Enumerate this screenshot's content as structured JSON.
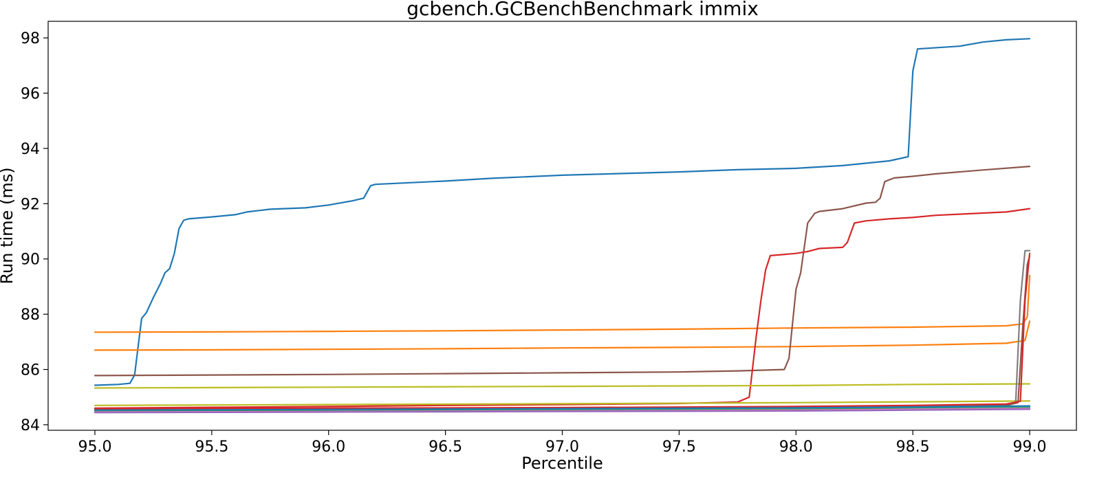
{
  "chart_data": {
    "type": "line",
    "title": "gcbench.GCBenchBenchmark immix",
    "xlabel": "Percentile",
    "ylabel": "Run time (ms)",
    "xlim": [
      94.8,
      99.2
    ],
    "ylim": [
      83.8,
      98.6
    ],
    "xticks": [
      95.0,
      95.5,
      96.0,
      96.5,
      97.0,
      97.5,
      98.0,
      98.5,
      99.0
    ],
    "xtick_labels": [
      "95.0",
      "95.5",
      "96.0",
      "96.5",
      "97.0",
      "97.5",
      "98.0",
      "98.5",
      "99.0"
    ],
    "yticks": [
      84,
      86,
      88,
      90,
      92,
      94,
      96,
      98
    ],
    "ytick_labels": [
      "84",
      "86",
      "88",
      "90",
      "92",
      "94",
      "96",
      "98"
    ],
    "grid": false,
    "series": [
      {
        "color": "#1f77b4",
        "points": [
          [
            95.0,
            85.43
          ],
          [
            95.1,
            85.46
          ],
          [
            95.15,
            85.5
          ],
          [
            95.17,
            85.8
          ],
          [
            95.2,
            87.85
          ],
          [
            95.22,
            88.05
          ],
          [
            95.25,
            88.6
          ],
          [
            95.28,
            89.1
          ],
          [
            95.3,
            89.5
          ],
          [
            95.32,
            89.65
          ],
          [
            95.34,
            90.2
          ],
          [
            95.36,
            91.1
          ],
          [
            95.38,
            91.4
          ],
          [
            95.4,
            91.45
          ],
          [
            95.5,
            91.52
          ],
          [
            95.6,
            91.6
          ],
          [
            95.65,
            91.7
          ],
          [
            95.75,
            91.8
          ],
          [
            95.9,
            91.85
          ],
          [
            96.0,
            91.95
          ],
          [
            96.1,
            92.1
          ],
          [
            96.15,
            92.2
          ],
          [
            96.18,
            92.65
          ],
          [
            96.2,
            92.7
          ],
          [
            96.5,
            92.82
          ],
          [
            96.7,
            92.92
          ],
          [
            97.0,
            93.03
          ],
          [
            97.5,
            93.15
          ],
          [
            97.75,
            93.23
          ],
          [
            98.0,
            93.28
          ],
          [
            98.2,
            93.38
          ],
          [
            98.4,
            93.55
          ],
          [
            98.48,
            93.7
          ],
          [
            98.5,
            96.8
          ],
          [
            98.52,
            97.6
          ],
          [
            98.7,
            97.7
          ],
          [
            98.8,
            97.85
          ],
          [
            98.9,
            97.93
          ],
          [
            99.0,
            97.97
          ]
        ]
      },
      {
        "color": "#ff7f0e",
        "points": [
          [
            95.0,
            87.35
          ],
          [
            95.5,
            87.36
          ],
          [
            96.0,
            87.38
          ],
          [
            96.5,
            87.4
          ],
          [
            97.0,
            87.43
          ],
          [
            97.5,
            87.46
          ],
          [
            98.0,
            87.5
          ],
          [
            98.5,
            87.53
          ],
          [
            98.9,
            87.58
          ],
          [
            98.97,
            87.65
          ],
          [
            98.99,
            87.9
          ],
          [
            99.0,
            89.4
          ]
        ]
      },
      {
        "color": "#ff7f0e",
        "points": [
          [
            95.0,
            86.7
          ],
          [
            95.5,
            86.71
          ],
          [
            96.0,
            86.73
          ],
          [
            96.5,
            86.75
          ],
          [
            97.0,
            86.78
          ],
          [
            97.5,
            86.8
          ],
          [
            98.0,
            86.83
          ],
          [
            98.5,
            86.88
          ],
          [
            98.9,
            86.95
          ],
          [
            98.98,
            87.05
          ],
          [
            99.0,
            87.75
          ]
        ]
      },
      {
        "color": "#8c564b",
        "points": [
          [
            95.0,
            85.78
          ],
          [
            95.5,
            85.8
          ],
          [
            96.0,
            85.82
          ],
          [
            96.5,
            85.85
          ],
          [
            97.0,
            85.88
          ],
          [
            97.5,
            85.91
          ],
          [
            97.75,
            85.95
          ],
          [
            97.95,
            86.0
          ],
          [
            97.97,
            86.4
          ],
          [
            98.0,
            88.9
          ],
          [
            98.02,
            89.5
          ],
          [
            98.05,
            91.3
          ],
          [
            98.08,
            91.65
          ],
          [
            98.1,
            91.72
          ],
          [
            98.2,
            91.82
          ],
          [
            98.3,
            92.02
          ],
          [
            98.34,
            92.05
          ],
          [
            98.36,
            92.2
          ],
          [
            98.38,
            92.8
          ],
          [
            98.42,
            92.93
          ],
          [
            98.5,
            92.99
          ],
          [
            98.6,
            93.08
          ],
          [
            98.8,
            93.22
          ],
          [
            99.0,
            93.35
          ]
        ]
      },
      {
        "color": "#d62728",
        "points": [
          [
            95.0,
            84.6
          ],
          [
            95.5,
            84.63
          ],
          [
            96.0,
            84.66
          ],
          [
            96.5,
            84.7
          ],
          [
            97.0,
            84.73
          ],
          [
            97.5,
            84.77
          ],
          [
            97.75,
            84.82
          ],
          [
            97.8,
            85.0
          ],
          [
            97.83,
            87.2
          ],
          [
            97.85,
            88.5
          ],
          [
            97.87,
            89.6
          ],
          [
            97.89,
            90.12
          ],
          [
            98.0,
            90.2
          ],
          [
            98.05,
            90.27
          ],
          [
            98.1,
            90.38
          ],
          [
            98.2,
            90.42
          ],
          [
            98.22,
            90.6
          ],
          [
            98.25,
            91.3
          ],
          [
            98.3,
            91.38
          ],
          [
            98.4,
            91.45
          ],
          [
            98.5,
            91.5
          ],
          [
            98.6,
            91.58
          ],
          [
            98.7,
            91.62
          ],
          [
            98.9,
            91.7
          ],
          [
            99.0,
            91.82
          ]
        ]
      },
      {
        "color": "#bcbd22",
        "points": [
          [
            95.0,
            85.33
          ],
          [
            96.0,
            85.36
          ],
          [
            97.0,
            85.39
          ],
          [
            98.0,
            85.42
          ],
          [
            98.5,
            85.46
          ],
          [
            99.0,
            85.48
          ]
        ]
      },
      {
        "color": "#bcbd22",
        "points": [
          [
            95.0,
            84.7
          ],
          [
            96.0,
            84.73
          ],
          [
            97.0,
            84.76
          ],
          [
            98.0,
            84.8
          ],
          [
            98.5,
            84.83
          ],
          [
            99.0,
            84.86
          ]
        ]
      },
      {
        "color": "#7f7f7f",
        "points": [
          [
            95.0,
            84.55
          ],
          [
            96.0,
            84.57
          ],
          [
            97.0,
            84.6
          ],
          [
            98.0,
            84.63
          ],
          [
            98.5,
            84.66
          ],
          [
            98.9,
            84.75
          ],
          [
            98.94,
            84.8
          ],
          [
            98.96,
            88.5
          ],
          [
            98.98,
            90.3
          ],
          [
            99.0,
            90.3
          ]
        ]
      },
      {
        "color": "#8c564b",
        "points": [
          [
            95.0,
            84.52
          ],
          [
            96.0,
            84.54
          ],
          [
            97.0,
            84.57
          ],
          [
            98.0,
            84.6
          ],
          [
            98.5,
            84.63
          ],
          [
            98.9,
            84.7
          ],
          [
            98.95,
            84.8
          ],
          [
            98.97,
            87.5
          ],
          [
            98.99,
            89.8
          ],
          [
            99.0,
            90.1
          ]
        ]
      },
      {
        "color": "#d62728",
        "points": [
          [
            95.0,
            84.58
          ],
          [
            96.0,
            84.6
          ],
          [
            97.0,
            84.62
          ],
          [
            98.0,
            84.66
          ],
          [
            98.5,
            84.7
          ],
          [
            98.9,
            84.75
          ],
          [
            98.96,
            84.85
          ],
          [
            98.98,
            88.5
          ],
          [
            99.0,
            90.2
          ]
        ]
      },
      {
        "color": "#17becf",
        "points": [
          [
            95.0,
            84.5
          ],
          [
            96.0,
            84.52
          ],
          [
            97.0,
            84.55
          ],
          [
            98.0,
            84.58
          ],
          [
            98.5,
            84.61
          ],
          [
            99.0,
            84.65
          ]
        ]
      },
      {
        "color": "#2ca02c",
        "points": [
          [
            95.0,
            84.48
          ],
          [
            96.0,
            84.5
          ],
          [
            97.0,
            84.52
          ],
          [
            98.0,
            84.55
          ],
          [
            98.5,
            84.58
          ],
          [
            99.0,
            84.61
          ]
        ]
      },
      {
        "color": "#e377c2",
        "points": [
          [
            95.0,
            84.46
          ],
          [
            96.0,
            84.48
          ],
          [
            97.0,
            84.5
          ],
          [
            98.0,
            84.53
          ],
          [
            98.5,
            84.56
          ],
          [
            99.0,
            84.59
          ]
        ]
      },
      {
        "color": "#9467bd",
        "points": [
          [
            95.0,
            84.44
          ],
          [
            96.0,
            84.46
          ],
          [
            97.0,
            84.48
          ],
          [
            98.0,
            84.5
          ],
          [
            98.5,
            84.53
          ],
          [
            99.0,
            84.56
          ]
        ]
      },
      {
        "color": "#1f77b4",
        "points": [
          [
            95.0,
            84.53
          ],
          [
            96.0,
            84.55
          ],
          [
            97.0,
            84.58
          ],
          [
            98.0,
            84.61
          ],
          [
            98.5,
            84.64
          ],
          [
            99.0,
            84.68
          ]
        ]
      }
    ]
  }
}
